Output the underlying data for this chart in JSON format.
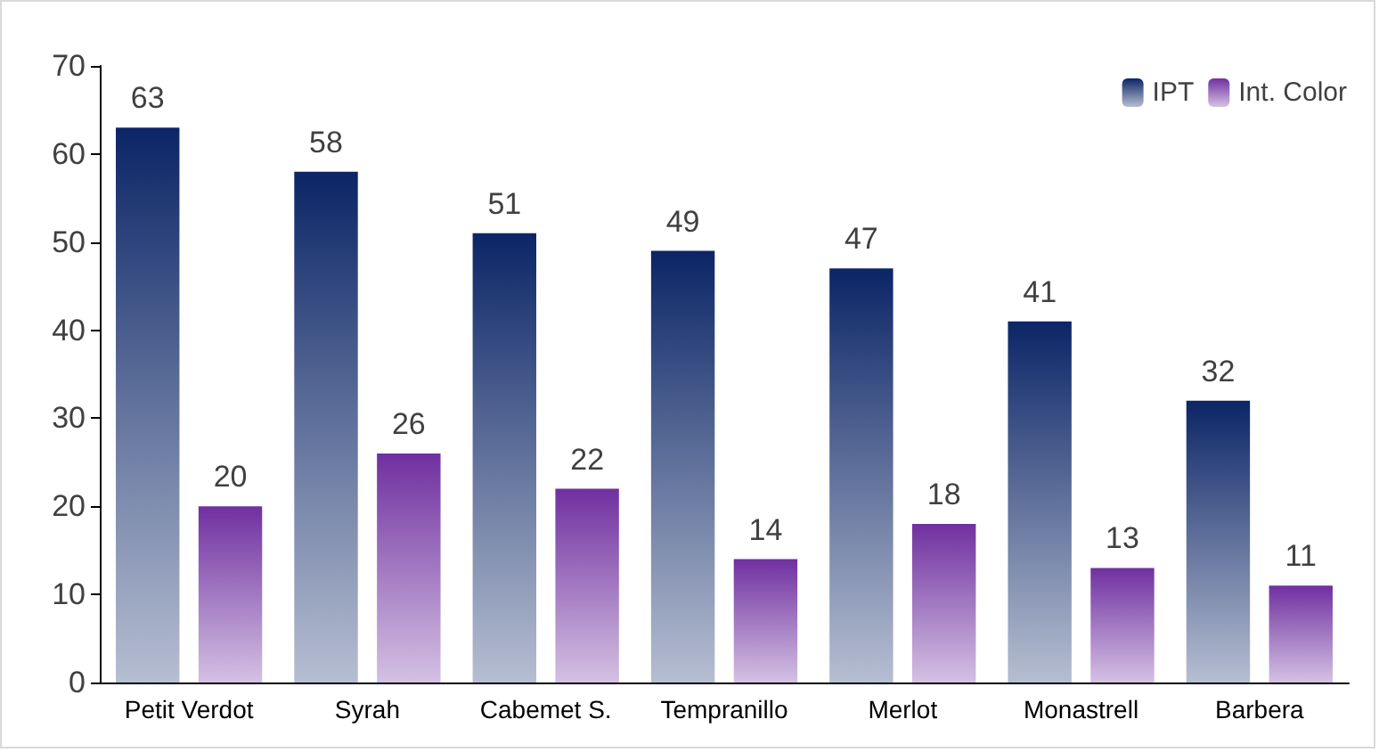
{
  "chart_data": {
    "type": "bar",
    "categories": [
      "Petit Verdot",
      "Syrah",
      "Cabemet S.",
      "Tempranillo",
      "Merlot",
      "Monastrell",
      "Barbera"
    ],
    "series": [
      {
        "name": "IPT",
        "color": "#0b2566",
        "values": [
          63,
          58,
          51,
          49,
          47,
          41,
          32
        ]
      },
      {
        "name": "Int. Color",
        "color": "#7030a0",
        "values": [
          20,
          26,
          22,
          14,
          18,
          13,
          11
        ]
      }
    ],
    "ylim": [
      0,
      70
    ],
    "yticks": [
      0,
      10,
      20,
      30,
      40,
      50,
      60,
      70
    ],
    "grid": false,
    "legend": "top right",
    "data_labels": true
  }
}
